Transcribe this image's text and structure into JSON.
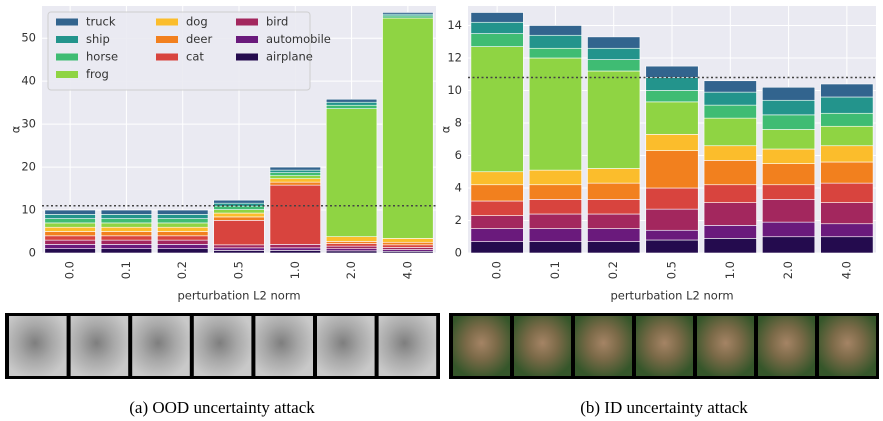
{
  "chart_data": [
    {
      "type": "stacked_bar",
      "caption": "(a) OOD uncertainty attack",
      "xlabel": "perturbation L2 norm",
      "ylabel": "α",
      "categories": [
        "0.0",
        "0.1",
        "0.2",
        "0.5",
        "1.0",
        "2.0",
        "4.0"
      ],
      "ylim": [
        0,
        57.5
      ],
      "yticks": [
        0,
        10,
        20,
        30,
        40,
        50
      ],
      "grid": true,
      "legend": "upper left",
      "threshold": 11,
      "series": [
        {
          "name": "airplane",
          "color": "#240b4e",
          "values": [
            1,
            1,
            1,
            0.6,
            0.6,
            0.5,
            0.4
          ]
        },
        {
          "name": "automobile",
          "color": "#6a1a7c",
          "values": [
            1,
            1,
            1,
            0.6,
            0.6,
            0.5,
            0.4
          ]
        },
        {
          "name": "bird",
          "color": "#a3275e",
          "values": [
            1,
            1,
            1,
            0.7,
            0.8,
            0.6,
            0.5
          ]
        },
        {
          "name": "cat",
          "color": "#d8443e",
          "values": [
            1,
            1,
            1,
            5.7,
            13.8,
            0.6,
            0.6
          ]
        },
        {
          "name": "deer",
          "color": "#f2801e",
          "values": [
            1,
            1,
            1,
            0.8,
            0.7,
            0.5,
            0.6
          ]
        },
        {
          "name": "dog",
          "color": "#fbbd2c",
          "values": [
            1,
            1,
            1,
            0.9,
            0.8,
            1.1,
            0.9
          ]
        },
        {
          "name": "frog",
          "color": "#8fd443",
          "values": [
            1,
            1,
            1,
            0.8,
            0.7,
            29.8,
            51.3
          ]
        },
        {
          "name": "horse",
          "color": "#3fbc73",
          "values": [
            1,
            1,
            1,
            0.8,
            0.7,
            0.8,
            0.5
          ]
        },
        {
          "name": "ship",
          "color": "#23948c",
          "values": [
            1,
            1,
            1,
            0.7,
            0.6,
            0.7,
            0.4
          ]
        },
        {
          "name": "truck",
          "color": "#32648e",
          "values": [
            1,
            1,
            1,
            0.7,
            0.7,
            0.7,
            0.4
          ]
        }
      ]
    },
    {
      "type": "stacked_bar",
      "caption": "(b) ID uncertainty attack",
      "xlabel": "perturbation L2 norm",
      "ylabel": "α",
      "categories": [
        "0.0",
        "0.1",
        "0.2",
        "0.5",
        "1.0",
        "2.0",
        "4.0"
      ],
      "ylim": [
        0,
        15.2
      ],
      "yticks": [
        0,
        2,
        4,
        6,
        8,
        10,
        12,
        14
      ],
      "grid": true,
      "threshold": 10.8,
      "series": [
        {
          "color": "#240b4e",
          "values": [
            0.7,
            0.7,
            0.7,
            0.8,
            0.9,
            1.0,
            1.0
          ]
        },
        {
          "color": "#6a1a7c",
          "values": [
            0.8,
            0.8,
            0.8,
            0.6,
            0.8,
            0.9,
            0.8
          ]
        },
        {
          "color": "#a3275e",
          "values": [
            0.8,
            0.9,
            0.9,
            1.3,
            1.4,
            1.4,
            1.3
          ]
        },
        {
          "color": "#d8443e",
          "values": [
            0.9,
            0.9,
            0.9,
            1.3,
            1.1,
            0.9,
            1.2
          ]
        },
        {
          "color": "#f2801e",
          "values": [
            1.0,
            0.9,
            1.0,
            2.3,
            1.5,
            1.3,
            1.3
          ]
        },
        {
          "color": "#fbbd2c",
          "values": [
            0.8,
            0.9,
            0.9,
            1.0,
            0.9,
            0.9,
            1.0
          ]
        },
        {
          "color": "#8fd443",
          "values": [
            7.7,
            6.9,
            6.0,
            2.0,
            1.7,
            1.2,
            1.2
          ]
        },
        {
          "color": "#3fbc73",
          "values": [
            0.8,
            0.6,
            0.7,
            0.7,
            0.8,
            0.9,
            0.8
          ]
        },
        {
          "color": "#23948c",
          "values": [
            0.7,
            0.8,
            0.7,
            0.8,
            0.8,
            0.9,
            1.0
          ]
        },
        {
          "color": "#32648e",
          "values": [
            0.6,
            0.6,
            0.7,
            0.7,
            0.7,
            0.8,
            0.8
          ]
        }
      ]
    }
  ]
}
